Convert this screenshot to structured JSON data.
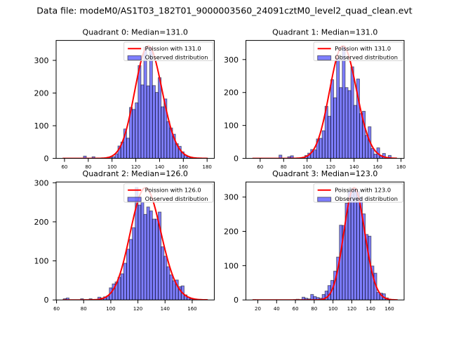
{
  "figure": {
    "suptitle": "Data file: modeM0/AS1T03_182T01_9000003560_24091cztM0_level2_quad_clean.evt"
  },
  "colors": {
    "bar_fill": "#0000ff",
    "bar_edge": "#000000",
    "curve": "#ff0000",
    "legend_edge": "#cccccc",
    "axes": "#000000",
    "background": "#ffffff"
  },
  "chart_data": [
    {
      "type": "bar",
      "subtype": "histogram",
      "title": "Quadrant 0: Median=131.0",
      "median": 131.0,
      "xlabel": "",
      "ylabel": "",
      "xlim": [
        52.95,
        186.05
      ],
      "ylim": [
        0,
        361
      ],
      "xticks": [
        60,
        80,
        100,
        120,
        140,
        160,
        180
      ],
      "yticks": [
        0,
        100,
        200,
        300
      ],
      "grid": false,
      "histogram": {
        "label": "Observed distribution",
        "bin_start": 59,
        "bin_width": 2.42,
        "counts": [
          0,
          0,
          0,
          0,
          0,
          0,
          0,
          7,
          0,
          0,
          5,
          0,
          0,
          0,
          0,
          1,
          3,
          5,
          14,
          38,
          50,
          90,
          62,
          156,
          150,
          170,
          284,
          225,
          340,
          222,
          340,
          223,
          202,
          247,
          158,
          182,
          113,
          93,
          74,
          45,
          37,
          20,
          10,
          5,
          2,
          1,
          0,
          0,
          0,
          0
        ]
      },
      "poisson_curve": {
        "label": "Poission with 131.0",
        "lambda": 131,
        "peak": 344,
        "x_range": [
          59,
          180
        ]
      },
      "legend": {
        "placement": "top-right",
        "entries": [
          "Poission with 131.0",
          "Observed distribution"
        ]
      }
    },
    {
      "type": "bar",
      "subtype": "histogram",
      "title": "Quadrant 1: Median=131.0",
      "median": 131.0,
      "xlabel": "",
      "ylabel": "",
      "xlim": [
        47.875,
        182.625
      ],
      "ylim": [
        0,
        358
      ],
      "xticks": [
        60,
        80,
        100,
        120,
        140,
        160,
        180
      ],
      "yticks": [
        0,
        100,
        200,
        300
      ],
      "grid": false,
      "histogram": {
        "label": "Observed distribution",
        "bin_start": 54,
        "bin_width": 2.45,
        "counts": [
          0,
          0,
          0,
          0,
          0,
          0,
          0,
          0,
          0,
          10,
          0,
          0,
          5,
          8,
          0,
          0,
          0,
          3,
          9,
          16,
          27,
          26,
          59,
          61,
          84,
          158,
          128,
          239,
          184,
          305,
          215,
          341,
          215,
          206,
          278,
          161,
          241,
          136,
          143,
          70,
          96,
          30,
          13,
          32,
          8,
          15,
          2,
          9,
          1,
          0
        ]
      },
      "poisson_curve": {
        "label": "Poission with 131.0",
        "lambda": 131,
        "peak": 341,
        "x_range": [
          54,
          176
        ]
      },
      "legend": {
        "placement": "top-right",
        "entries": [
          "Poission with 131.0",
          "Observed distribution"
        ]
      }
    },
    {
      "type": "bar",
      "subtype": "histogram",
      "title": "Quadrant 2: Median=126.0",
      "median": 126.0,
      "xlabel": "",
      "ylabel": "",
      "xlim": [
        59.7,
        176.3
      ],
      "ylim": [
        0,
        302
      ],
      "xticks": [
        60,
        80,
        100,
        120,
        140,
        160
      ],
      "yticks": [
        0,
        100,
        200,
        300
      ],
      "grid": false,
      "histogram": {
        "label": "Observed distribution",
        "bin_start": 65,
        "bin_width": 2.12,
        "counts": [
          3,
          5,
          0,
          0,
          0,
          0,
          3,
          0,
          0,
          3,
          0,
          0,
          7,
          5,
          8,
          10,
          31,
          41,
          46,
          58,
          67,
          94,
          130,
          155,
          185,
          288,
          243,
          250,
          219,
          238,
          228,
          207,
          207,
          225,
          136,
          112,
          85,
          64,
          49,
          51,
          34,
          36,
          13,
          7,
          3,
          2,
          1,
          0,
          0,
          1
        ]
      },
      "poisson_curve": {
        "label": "Poission with 126.0",
        "lambda": 126,
        "peak": 287,
        "x_range": [
          65,
          171
        ]
      },
      "legend": {
        "placement": "top-right",
        "entries": [
          "Poission with 126.0",
          "Observed distribution"
        ]
      }
    },
    {
      "type": "bar",
      "subtype": "histogram",
      "title": "Quadrant 3: Median=123.0",
      "median": 123.0,
      "xlabel": "",
      "ylabel": "",
      "xlim": [
        7.35,
        175.65
      ],
      "ylim": [
        0,
        344
      ],
      "xticks": [
        20,
        40,
        60,
        80,
        100,
        120,
        140,
        160
      ],
      "yticks": [
        0,
        100,
        200,
        300
      ],
      "grid": false,
      "histogram": {
        "label": "Observed distribution",
        "bin_start": 15,
        "bin_width": 3.06,
        "counts": [
          1,
          0,
          0,
          0,
          0,
          0,
          0,
          0,
          0,
          0,
          0,
          0,
          0,
          0,
          1,
          2,
          1,
          8,
          5,
          3,
          16,
          10,
          7,
          5,
          16,
          26,
          42,
          57,
          84,
          125,
          218,
          217,
          282,
          318,
          326,
          326,
          316,
          300,
          251,
          191,
          186,
          99,
          78,
          22,
          20,
          18,
          6,
          2,
          1,
          0
        ]
      },
      "poisson_curve": {
        "label": "Poission with 123.0",
        "lambda": 123,
        "peak": 327,
        "x_range": [
          15,
          168
        ]
      },
      "legend": {
        "placement": "top-right",
        "entries": [
          "Poission with 123.0",
          "Observed distribution"
        ]
      }
    }
  ]
}
